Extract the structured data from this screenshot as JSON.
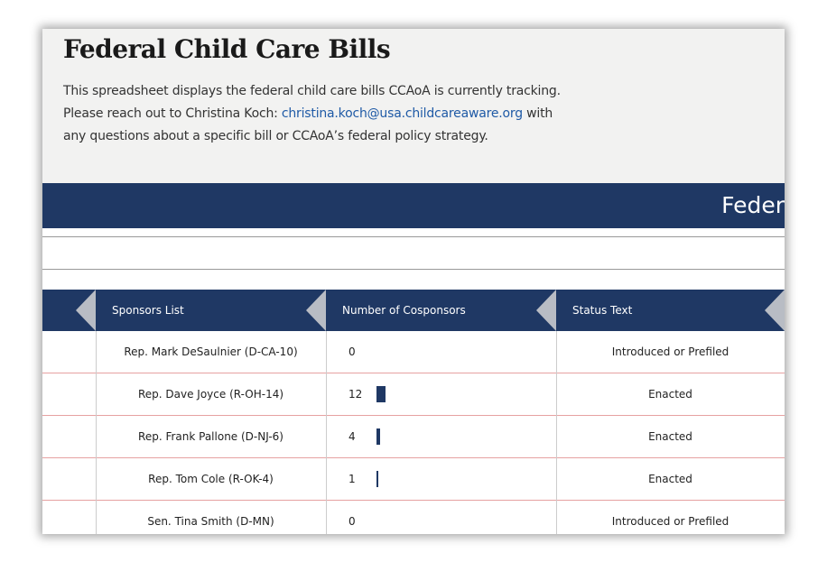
{
  "header": {
    "title": "Federal Child Care Bills",
    "description": {
      "line1": "This spreadsheet displays the federal child care bills CCAoA is currently tracking.",
      "line2_before": "Please reach out to Christina Koch: ",
      "email": "christina.koch@usa.childcareaware.org",
      "line2_after": " with",
      "line3": "any questions about a specific bill or CCAoA’s federal policy strategy."
    }
  },
  "banner": {
    "title": "Feder"
  },
  "table": {
    "columns": [
      "Sponsors List",
      "Number of Cosponsors",
      "Status Text"
    ],
    "bar_color": "#1f3864",
    "rows": [
      [
        "Rep. Mark DeSaulnier (D-CA-10)",
        0,
        "Introduced or Prefiled"
      ],
      [
        "Rep. Dave Joyce (R-OH-14)",
        12,
        "Enacted"
      ],
      [
        "Rep. Frank Pallone (D-NJ-6)",
        4,
        "Enacted"
      ],
      [
        "Rep. Tom Cole (R-OK-4)",
        1,
        "Enacted"
      ],
      [
        "Sen. Tina Smith (D-MN)",
        0,
        "Introduced or Prefiled"
      ]
    ]
  }
}
